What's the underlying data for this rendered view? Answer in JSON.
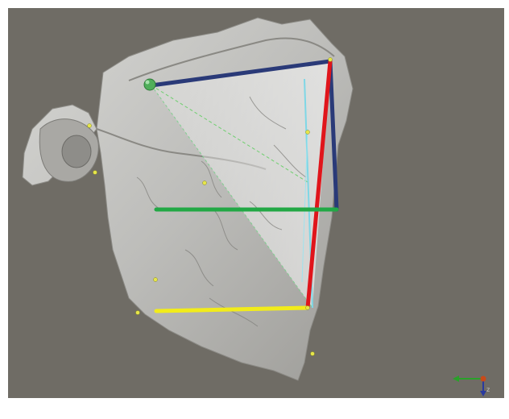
{
  "scene": {
    "type": "3d-mesh-viewport",
    "subject": "skull-mandible-scan",
    "background_color": "#6f6c65",
    "mesh_color": "#c9c9c7",
    "line_colors": {
      "navy": "#2a3a78",
      "red": "#e0151b",
      "green": "#22a845",
      "yellow": "#f2ec1a",
      "cyan": "#7fd7e6"
    },
    "landmark_color": "#e6e64a",
    "landmark_count": 9
  },
  "axis_gizmo": {
    "x_color": "#2aa02a",
    "y_color": "#2a3a9e",
    "z_color": "#c84a1a",
    "label": "z"
  }
}
